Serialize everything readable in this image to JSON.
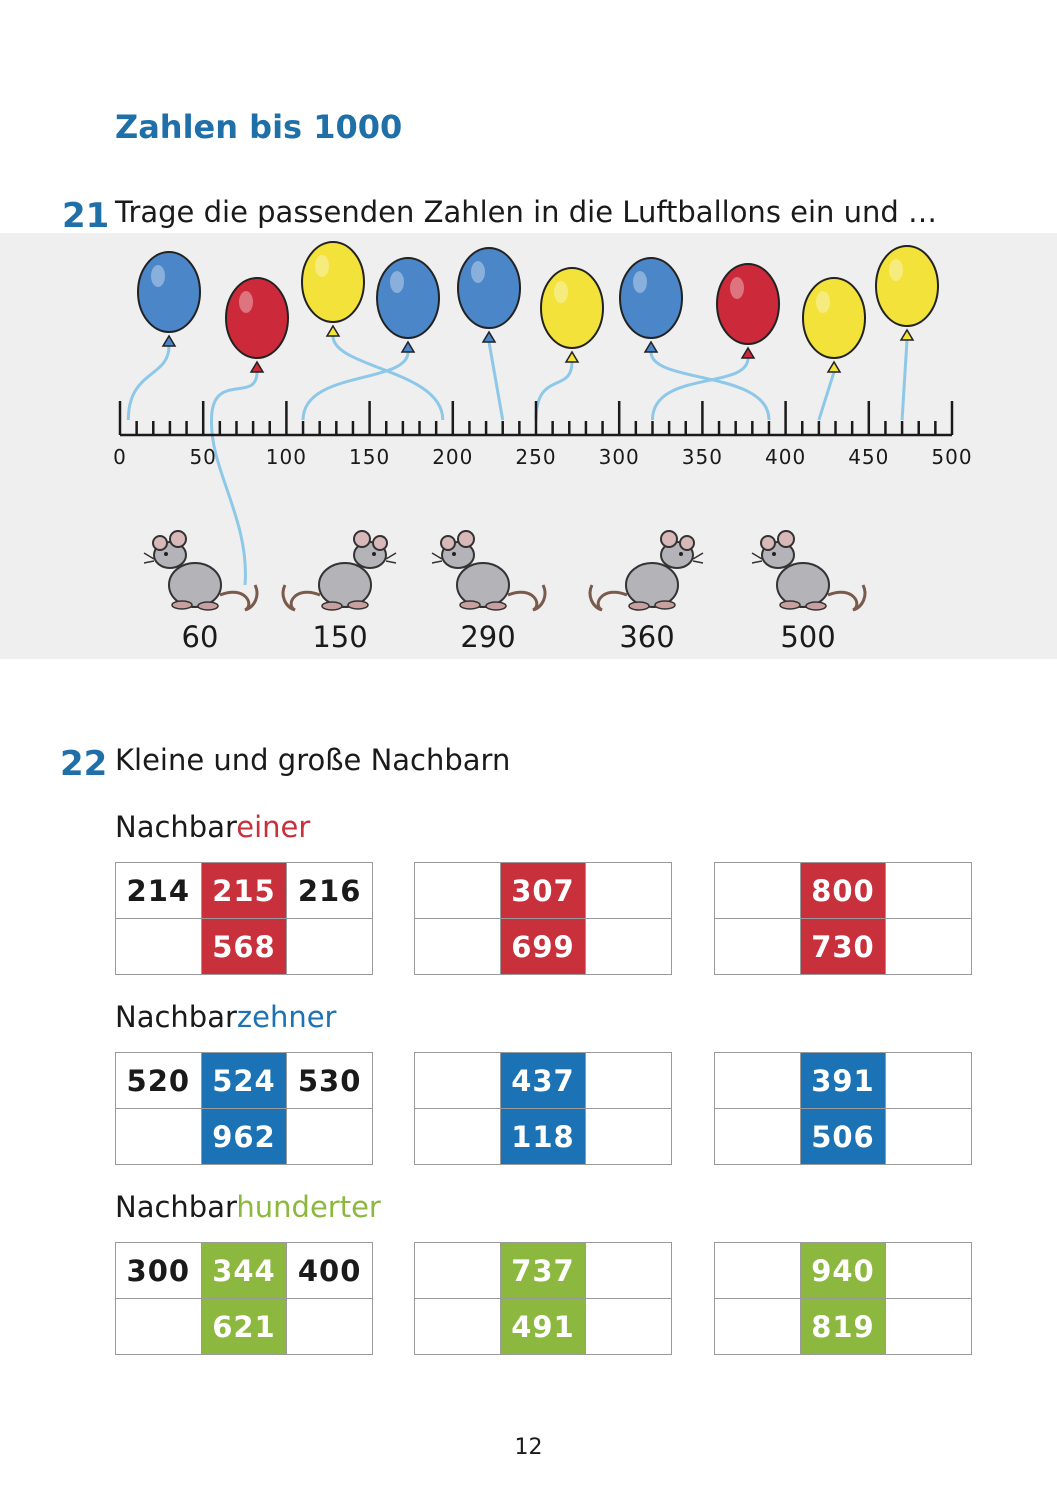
{
  "title": "Zahlen bis 1000",
  "task21": {
    "number": "21",
    "text": "Trage die passenden Zahlen in die Luftballons ein und …",
    "scale_labels": [
      "0",
      "50",
      "100",
      "150",
      "200",
      "250",
      "300",
      "350",
      "400",
      "450",
      "500"
    ],
    "balloon_colors": [
      "blue",
      "red",
      "yellow",
      "blue",
      "blue",
      "yellow",
      "blue",
      "red",
      "yellow",
      "yellow"
    ],
    "mice_values": [
      "60",
      "150",
      "290",
      "360",
      "500"
    ]
  },
  "task22": {
    "number": "22",
    "text": "Kleine und große Nachbarn",
    "sections": [
      {
        "prefix": "Nachbar",
        "suffix": "einer",
        "suffix_color": "#c8303c",
        "tables": [
          {
            "rows": [
              [
                "214",
                "215",
                "216"
              ],
              [
                "",
                "568",
                ""
              ]
            ]
          },
          {
            "rows": [
              [
                "",
                "307",
                ""
              ],
              [
                "",
                "699",
                ""
              ]
            ]
          },
          {
            "rows": [
              [
                "",
                "800",
                ""
              ],
              [
                "",
                "730",
                ""
              ]
            ]
          }
        ]
      },
      {
        "prefix": "Nachbar",
        "suffix": "zehner",
        "suffix_color": "#1b72b5",
        "tables": [
          {
            "rows": [
              [
                "520",
                "524",
                "530"
              ],
              [
                "",
                "962",
                ""
              ]
            ]
          },
          {
            "rows": [
              [
                "",
                "437",
                ""
              ],
              [
                "",
                "118",
                ""
              ]
            ]
          },
          {
            "rows": [
              [
                "",
                "391",
                ""
              ],
              [
                "",
                "506",
                ""
              ]
            ]
          }
        ]
      },
      {
        "prefix": "Nachbar",
        "suffix": "hunderter",
        "suffix_color": "#8cb83f",
        "tables": [
          {
            "rows": [
              [
                "300",
                "344",
                "400"
              ],
              [
                "",
                "621",
                ""
              ]
            ]
          },
          {
            "rows": [
              [
                "",
                "737",
                ""
              ],
              [
                "",
                "491",
                ""
              ]
            ]
          },
          {
            "rows": [
              [
                "",
                "940",
                ""
              ],
              [
                "",
                "819",
                ""
              ]
            ]
          }
        ]
      }
    ]
  },
  "page_number": "12",
  "colors": {
    "heading_blue": "#1f6fa8",
    "balloon_blue": "#4a86c8",
    "balloon_red": "#cc2a3a",
    "balloon_yellow": "#f2e23a",
    "string": "#8ec8e8",
    "band": "#efefef"
  }
}
